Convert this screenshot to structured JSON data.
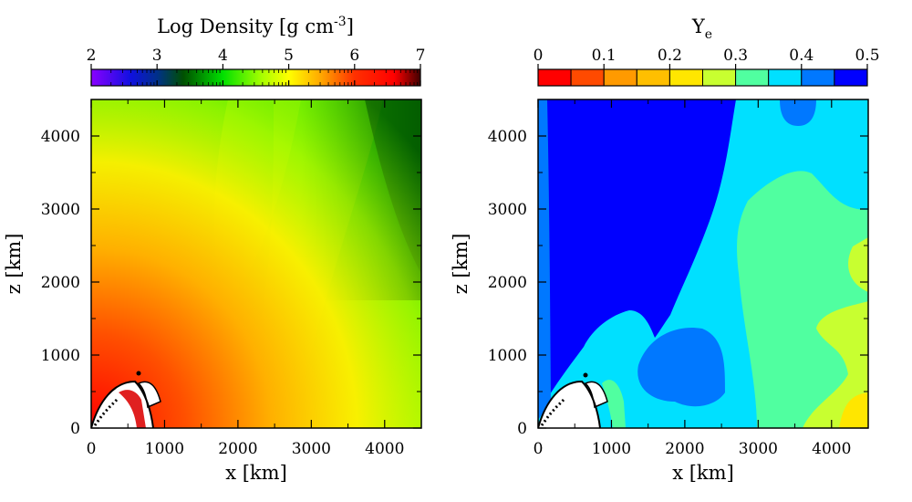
{
  "chart_data": [
    {
      "type": "heatmap",
      "title": "Log Density [g cm",
      "title_sup": "-3",
      "title_tail": "]",
      "xlabel": "x [km]",
      "ylabel": "z [km]",
      "xlim": [
        0,
        4500
      ],
      "ylim": [
        0,
        4500
      ],
      "xticks": [
        0,
        1000,
        2000,
        3000,
        4000
      ],
      "yticks": [
        0,
        1000,
        2000,
        3000,
        4000
      ],
      "colorbar": {
        "ticks": [
          2,
          3,
          4,
          5,
          6,
          7
        ],
        "range": [
          2,
          7
        ],
        "stops": [
          {
            "v": 2.0,
            "c": "#8a00ff"
          },
          {
            "v": 2.6,
            "c": "#1010e0"
          },
          {
            "v": 3.0,
            "c": "#00308a"
          },
          {
            "v": 3.4,
            "c": "#005000"
          },
          {
            "v": 4.0,
            "c": "#00e000"
          },
          {
            "v": 4.6,
            "c": "#aaff00"
          },
          {
            "v": 5.0,
            "c": "#ffff00"
          },
          {
            "v": 5.5,
            "c": "#ffa500"
          },
          {
            "v": 6.0,
            "c": "#ff3000"
          },
          {
            "v": 6.6,
            "c": "#ff0000"
          },
          {
            "v": 7.0,
            "c": "#400000"
          }
        ]
      }
    },
    {
      "type": "heatmap",
      "title": "Y",
      "title_sub": "e",
      "xlabel": "x [km]",
      "ylabel": "z [km]",
      "xlim": [
        0,
        4500
      ],
      "ylim": [
        0,
        4500
      ],
      "xticks": [
        0,
        1000,
        2000,
        3000,
        4000
      ],
      "yticks": [
        0,
        1000,
        2000,
        3000,
        4000
      ],
      "colorbar": {
        "ticks": [
          "0",
          "0.1",
          "0.2",
          "0.3",
          "0.4",
          "0.5"
        ],
        "range": [
          0,
          0.5
        ],
        "bands": [
          "#ff0000",
          "#ff4a00",
          "#ff9a00",
          "#ffbf00",
          "#ffe600",
          "#c8ff30",
          "#50ffa0",
          "#00e0ff",
          "#0078ff",
          "#0000ff"
        ]
      }
    }
  ]
}
